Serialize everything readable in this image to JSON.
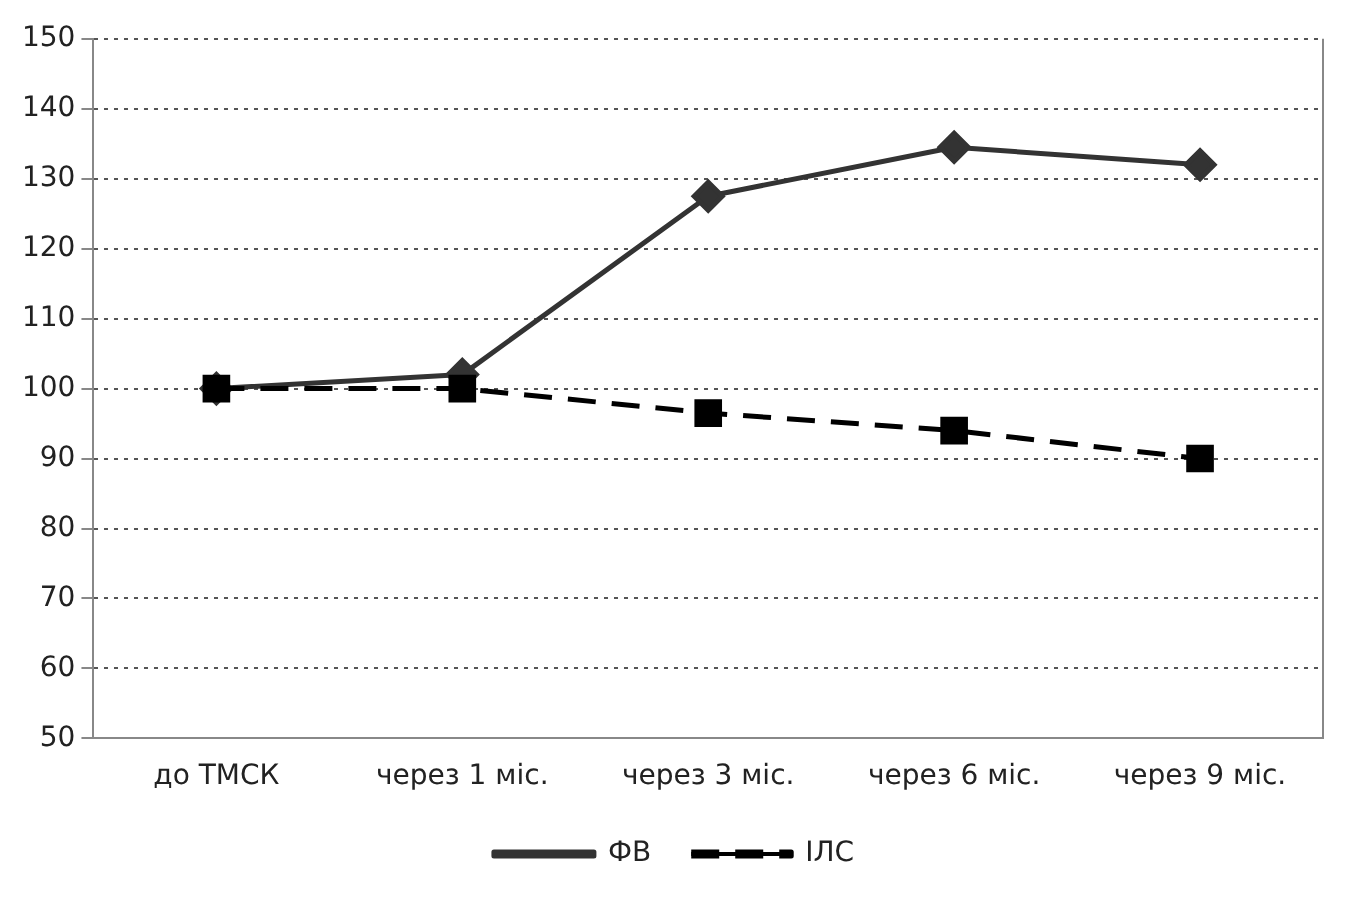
{
  "chart_data": {
    "type": "line",
    "categories": [
      "до ТМСК",
      "через 1 міс.",
      "через 3 міс.",
      "через 6 міс.",
      "через 9 міс."
    ],
    "series": [
      {
        "name": "ФВ",
        "color": "#333333",
        "marker": "diamond",
        "line_style": "solid",
        "values": [
          100,
          102,
          127.5,
          134.5,
          132
        ]
      },
      {
        "name": "ІЛС",
        "color": "#000000",
        "marker": "square",
        "line_style": "dashed",
        "values": [
          100,
          100,
          96.5,
          94,
          90
        ]
      }
    ],
    "ylim": [
      50,
      150
    ],
    "yticks": [
      50,
      60,
      70,
      80,
      90,
      100,
      110,
      120,
      130,
      140,
      150
    ],
    "grid": "y",
    "legend": "bottom"
  }
}
